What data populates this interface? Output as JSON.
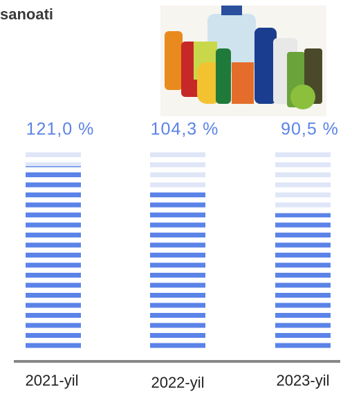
{
  "chart_data": {
    "type": "bar",
    "title": "sanoati",
    "categories": [
      "2021-yil",
      "2022-yil",
      "2023-yil"
    ],
    "values": [
      121.0,
      104.3,
      90.5
    ],
    "value_labels": [
      "121,0 %",
      "104,3 %",
      "90,5 %"
    ],
    "color": "#5b83e8"
  }
}
